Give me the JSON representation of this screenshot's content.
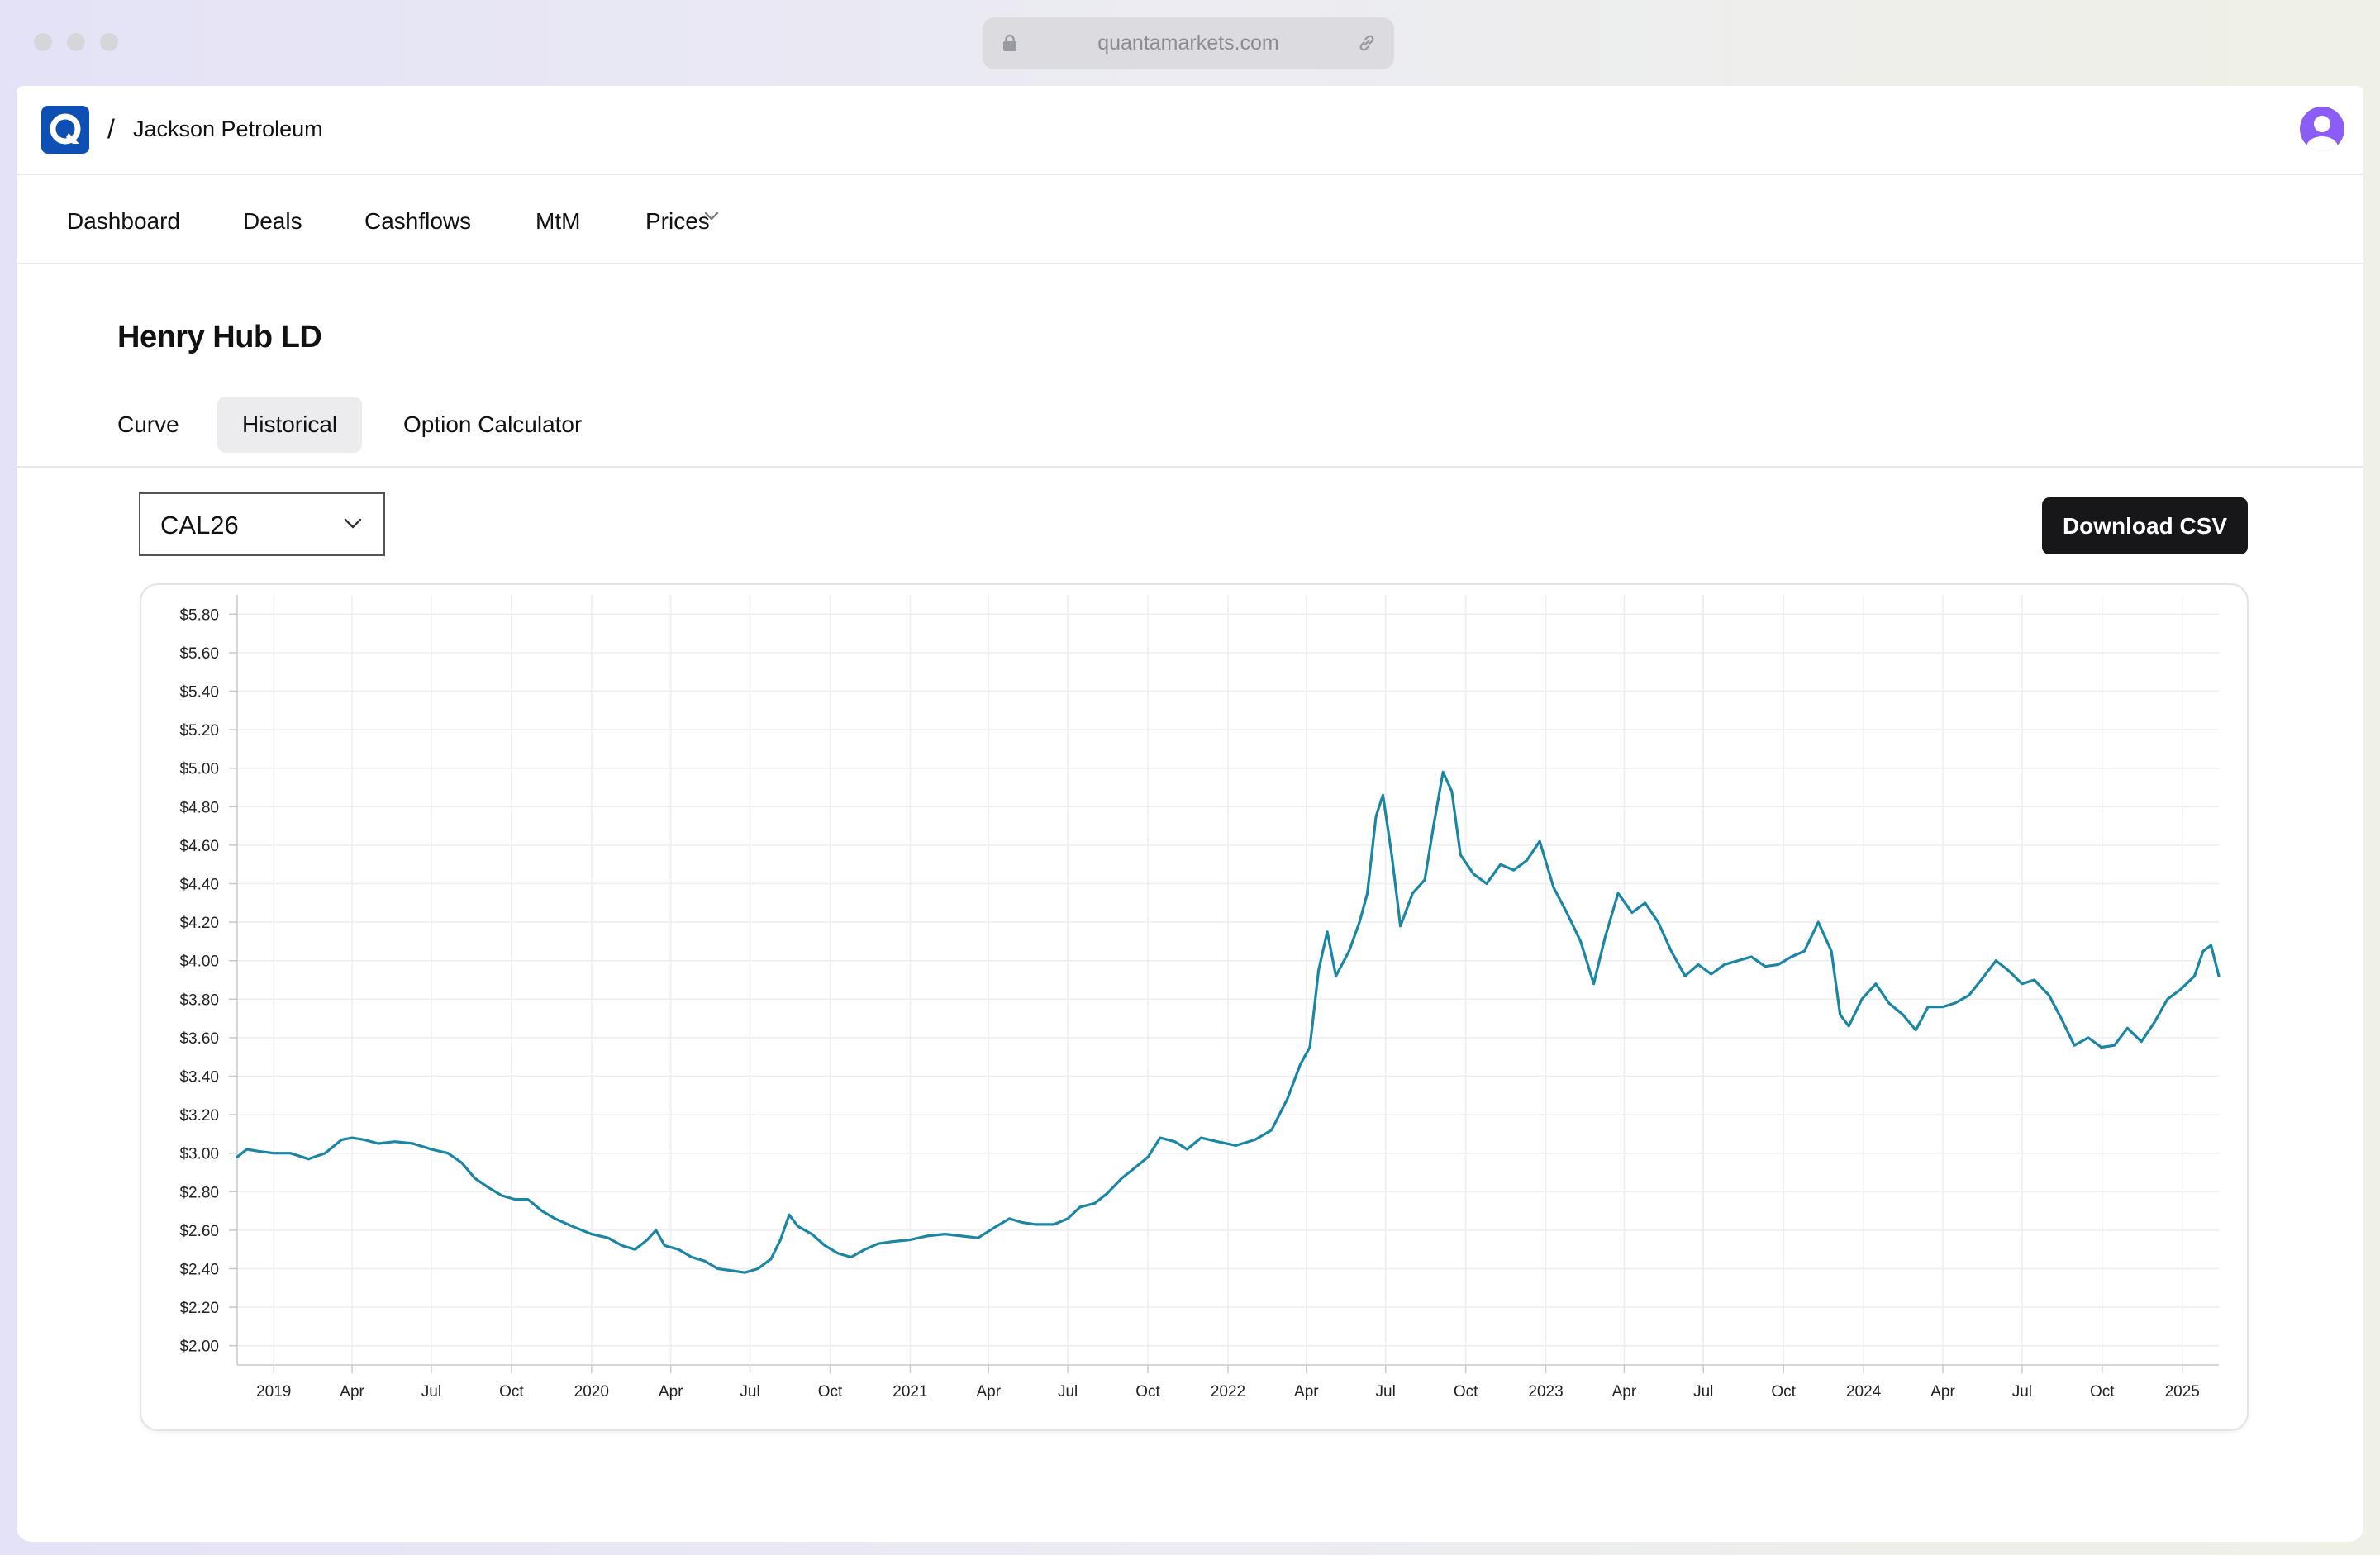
{
  "browser": {
    "url": "quantamarkets.com",
    "icons": [
      "lock-icon",
      "link-icon"
    ]
  },
  "header": {
    "breadcrumb_separator": "/",
    "org_name": "Jackson Petroleum",
    "icons": [
      "app-logo",
      "user-avatar-icon"
    ]
  },
  "nav": {
    "items": [
      {
        "label": "Dashboard"
      },
      {
        "label": "Deals"
      },
      {
        "label": "Cashflows"
      },
      {
        "label": "MtM"
      },
      {
        "label": "Prices",
        "has_dropdown": true
      }
    ]
  },
  "page": {
    "title": "Henry Hub LD",
    "tabs": [
      {
        "label": "Curve",
        "active": false
      },
      {
        "label": "Historical",
        "active": true
      },
      {
        "label": "Option Calculator",
        "active": false
      }
    ],
    "contract_select": {
      "value": "CAL26"
    },
    "download_label": "Download CSV"
  },
  "colors": {
    "line": "#1a86a4",
    "primary_button": "#17171a",
    "logo": "#0d4fb3",
    "avatar": "#8b5cf6"
  },
  "chart_data": {
    "type": "line",
    "title": "",
    "xlabel": "",
    "ylabel": "",
    "ylim": [
      1.9,
      5.9
    ],
    "y_ticks": [
      2.0,
      2.2,
      2.4,
      2.6,
      2.8,
      3.0,
      3.2,
      3.4,
      3.6,
      3.8,
      4.0,
      4.2,
      4.4,
      4.6,
      4.8,
      5.0,
      5.2,
      5.4,
      5.6,
      5.8
    ],
    "y_tick_labels": [
      "$2.00",
      "$2.20",
      "$2.40",
      "$2.60",
      "$2.80",
      "$3.00",
      "$3.20",
      "$3.40",
      "$3.60",
      "$3.80",
      "$4.00",
      "$4.20",
      "$4.40",
      "$4.60",
      "$4.80",
      "$5.00",
      "$5.20",
      "$5.40",
      "$5.60",
      "$5.80"
    ],
    "x_range": [
      "2018-11-20",
      "2025-02-12"
    ],
    "x_ticks": [
      {
        "date": "2019-01-01",
        "label": "2019"
      },
      {
        "date": "2019-04-01",
        "label": "Apr"
      },
      {
        "date": "2019-07-01",
        "label": "Jul"
      },
      {
        "date": "2019-10-01",
        "label": "Oct"
      },
      {
        "date": "2020-01-01",
        "label": "2020"
      },
      {
        "date": "2020-04-01",
        "label": "Apr"
      },
      {
        "date": "2020-07-01",
        "label": "Jul"
      },
      {
        "date": "2020-10-01",
        "label": "Oct"
      },
      {
        "date": "2021-01-01",
        "label": "2021"
      },
      {
        "date": "2021-04-01",
        "label": "Apr"
      },
      {
        "date": "2021-07-01",
        "label": "Jul"
      },
      {
        "date": "2021-10-01",
        "label": "Oct"
      },
      {
        "date": "2022-01-01",
        "label": "2022"
      },
      {
        "date": "2022-04-01",
        "label": "Apr"
      },
      {
        "date": "2022-07-01",
        "label": "Jul"
      },
      {
        "date": "2022-10-01",
        "label": "Oct"
      },
      {
        "date": "2023-01-01",
        "label": "2023"
      },
      {
        "date": "2023-04-01",
        "label": "Apr"
      },
      {
        "date": "2023-07-01",
        "label": "Jul"
      },
      {
        "date": "2023-10-01",
        "label": "Oct"
      },
      {
        "date": "2024-01-01",
        "label": "2024"
      },
      {
        "date": "2024-04-01",
        "label": "Apr"
      },
      {
        "date": "2024-07-01",
        "label": "Jul"
      },
      {
        "date": "2024-10-01",
        "label": "Oct"
      },
      {
        "date": "2025-01-01",
        "label": "2025"
      }
    ],
    "grid": true,
    "legend": "none",
    "series": [
      {
        "points": [
          [
            "2018-11-20",
            2.98
          ],
          [
            "2018-12-01",
            3.02
          ],
          [
            "2018-12-15",
            3.01
          ],
          [
            "2019-01-01",
            3.0
          ],
          [
            "2019-01-20",
            3.0
          ],
          [
            "2019-02-10",
            2.97
          ],
          [
            "2019-03-01",
            3.0
          ],
          [
            "2019-03-20",
            3.07
          ],
          [
            "2019-04-01",
            3.08
          ],
          [
            "2019-04-15",
            3.07
          ],
          [
            "2019-05-01",
            3.05
          ],
          [
            "2019-05-20",
            3.06
          ],
          [
            "2019-06-10",
            3.05
          ],
          [
            "2019-07-01",
            3.02
          ],
          [
            "2019-07-20",
            3.0
          ],
          [
            "2019-08-05",
            2.95
          ],
          [
            "2019-08-20",
            2.87
          ],
          [
            "2019-09-05",
            2.82
          ],
          [
            "2019-09-20",
            2.78
          ],
          [
            "2019-10-05",
            2.76
          ],
          [
            "2019-10-20",
            2.76
          ],
          [
            "2019-11-05",
            2.7
          ],
          [
            "2019-11-20",
            2.66
          ],
          [
            "2019-12-10",
            2.62
          ],
          [
            "2020-01-01",
            2.58
          ],
          [
            "2020-01-20",
            2.56
          ],
          [
            "2020-02-05",
            2.52
          ],
          [
            "2020-02-20",
            2.5
          ],
          [
            "2020-03-05",
            2.55
          ],
          [
            "2020-03-15",
            2.6
          ],
          [
            "2020-03-25",
            2.52
          ],
          [
            "2020-04-10",
            2.5
          ],
          [
            "2020-04-25",
            2.46
          ],
          [
            "2020-05-10",
            2.44
          ],
          [
            "2020-05-25",
            2.4
          ],
          [
            "2020-06-10",
            2.39
          ],
          [
            "2020-06-25",
            2.38
          ],
          [
            "2020-07-10",
            2.4
          ],
          [
            "2020-07-25",
            2.45
          ],
          [
            "2020-08-05",
            2.55
          ],
          [
            "2020-08-15",
            2.68
          ],
          [
            "2020-08-25",
            2.62
          ],
          [
            "2020-09-10",
            2.58
          ],
          [
            "2020-09-25",
            2.52
          ],
          [
            "2020-10-10",
            2.48
          ],
          [
            "2020-10-25",
            2.46
          ],
          [
            "2020-11-10",
            2.5
          ],
          [
            "2020-11-25",
            2.53
          ],
          [
            "2020-12-10",
            2.54
          ],
          [
            "2021-01-01",
            2.55
          ],
          [
            "2021-01-20",
            2.57
          ],
          [
            "2021-02-10",
            2.58
          ],
          [
            "2021-03-01",
            2.57
          ],
          [
            "2021-03-20",
            2.56
          ],
          [
            "2021-04-10",
            2.62
          ],
          [
            "2021-04-25",
            2.66
          ],
          [
            "2021-05-10",
            2.64
          ],
          [
            "2021-05-25",
            2.63
          ],
          [
            "2021-06-15",
            2.63
          ],
          [
            "2021-07-01",
            2.66
          ],
          [
            "2021-07-15",
            2.72
          ],
          [
            "2021-08-01",
            2.74
          ],
          [
            "2021-08-15",
            2.79
          ],
          [
            "2021-09-01",
            2.87
          ],
          [
            "2021-09-15",
            2.92
          ],
          [
            "2021-10-01",
            2.98
          ],
          [
            "2021-10-15",
            3.08
          ],
          [
            "2021-11-01",
            3.06
          ],
          [
            "2021-11-15",
            3.02
          ],
          [
            "2021-12-01",
            3.08
          ],
          [
            "2021-12-20",
            3.06
          ],
          [
            "2022-01-10",
            3.04
          ],
          [
            "2022-02-01",
            3.07
          ],
          [
            "2022-02-20",
            3.12
          ],
          [
            "2022-03-10",
            3.28
          ],
          [
            "2022-03-25",
            3.46
          ],
          [
            "2022-04-05",
            3.55
          ],
          [
            "2022-04-15",
            3.95
          ],
          [
            "2022-04-25",
            4.15
          ],
          [
            "2022-05-05",
            3.92
          ],
          [
            "2022-05-20",
            4.05
          ],
          [
            "2022-06-01",
            4.2
          ],
          [
            "2022-06-10",
            4.35
          ],
          [
            "2022-06-20",
            4.75
          ],
          [
            "2022-06-28",
            4.86
          ],
          [
            "2022-07-08",
            4.55
          ],
          [
            "2022-07-18",
            4.18
          ],
          [
            "2022-08-01",
            4.35
          ],
          [
            "2022-08-15",
            4.42
          ],
          [
            "2022-08-25",
            4.7
          ],
          [
            "2022-09-05",
            4.98
          ],
          [
            "2022-09-15",
            4.88
          ],
          [
            "2022-09-25",
            4.55
          ],
          [
            "2022-10-10",
            4.45
          ],
          [
            "2022-10-25",
            4.4
          ],
          [
            "2022-11-10",
            4.5
          ],
          [
            "2022-11-25",
            4.47
          ],
          [
            "2022-12-10",
            4.52
          ],
          [
            "2022-12-25",
            4.62
          ],
          [
            "2023-01-10",
            4.38
          ],
          [
            "2023-01-25",
            4.25
          ],
          [
            "2023-02-10",
            4.1
          ],
          [
            "2023-02-25",
            3.88
          ],
          [
            "2023-03-10",
            4.12
          ],
          [
            "2023-03-25",
            4.35
          ],
          [
            "2023-04-10",
            4.25
          ],
          [
            "2023-04-25",
            4.3
          ],
          [
            "2023-05-10",
            4.2
          ],
          [
            "2023-05-25",
            4.05
          ],
          [
            "2023-06-10",
            3.92
          ],
          [
            "2023-06-25",
            3.98
          ],
          [
            "2023-07-10",
            3.93
          ],
          [
            "2023-07-25",
            3.98
          ],
          [
            "2023-08-10",
            4.0
          ],
          [
            "2023-08-25",
            4.02
          ],
          [
            "2023-09-10",
            3.97
          ],
          [
            "2023-09-25",
            3.98
          ],
          [
            "2023-10-10",
            4.02
          ],
          [
            "2023-10-25",
            4.05
          ],
          [
            "2023-11-10",
            4.2
          ],
          [
            "2023-11-25",
            4.05
          ],
          [
            "2023-12-05",
            3.72
          ],
          [
            "2023-12-15",
            3.66
          ],
          [
            "2023-12-30",
            3.8
          ],
          [
            "2024-01-15",
            3.88
          ],
          [
            "2024-01-30",
            3.78
          ],
          [
            "2024-02-15",
            3.72
          ],
          [
            "2024-03-01",
            3.64
          ],
          [
            "2024-03-15",
            3.76
          ],
          [
            "2024-04-01",
            3.76
          ],
          [
            "2024-04-15",
            3.78
          ],
          [
            "2024-05-01",
            3.82
          ],
          [
            "2024-05-15",
            3.9
          ],
          [
            "2024-06-01",
            4.0
          ],
          [
            "2024-06-15",
            3.95
          ],
          [
            "2024-07-01",
            3.88
          ],
          [
            "2024-07-15",
            3.9
          ],
          [
            "2024-08-01",
            3.82
          ],
          [
            "2024-08-15",
            3.7
          ],
          [
            "2024-08-30",
            3.56
          ],
          [
            "2024-09-15",
            3.6
          ],
          [
            "2024-09-30",
            3.55
          ],
          [
            "2024-10-15",
            3.56
          ],
          [
            "2024-10-30",
            3.65
          ],
          [
            "2024-11-15",
            3.58
          ],
          [
            "2024-11-30",
            3.68
          ],
          [
            "2024-12-15",
            3.8
          ],
          [
            "2024-12-30",
            3.85
          ],
          [
            "2025-01-15",
            3.92
          ],
          [
            "2025-01-25",
            4.05
          ],
          [
            "2025-02-03",
            4.08
          ],
          [
            "2025-02-12",
            3.92
          ]
        ]
      }
    ]
  }
}
